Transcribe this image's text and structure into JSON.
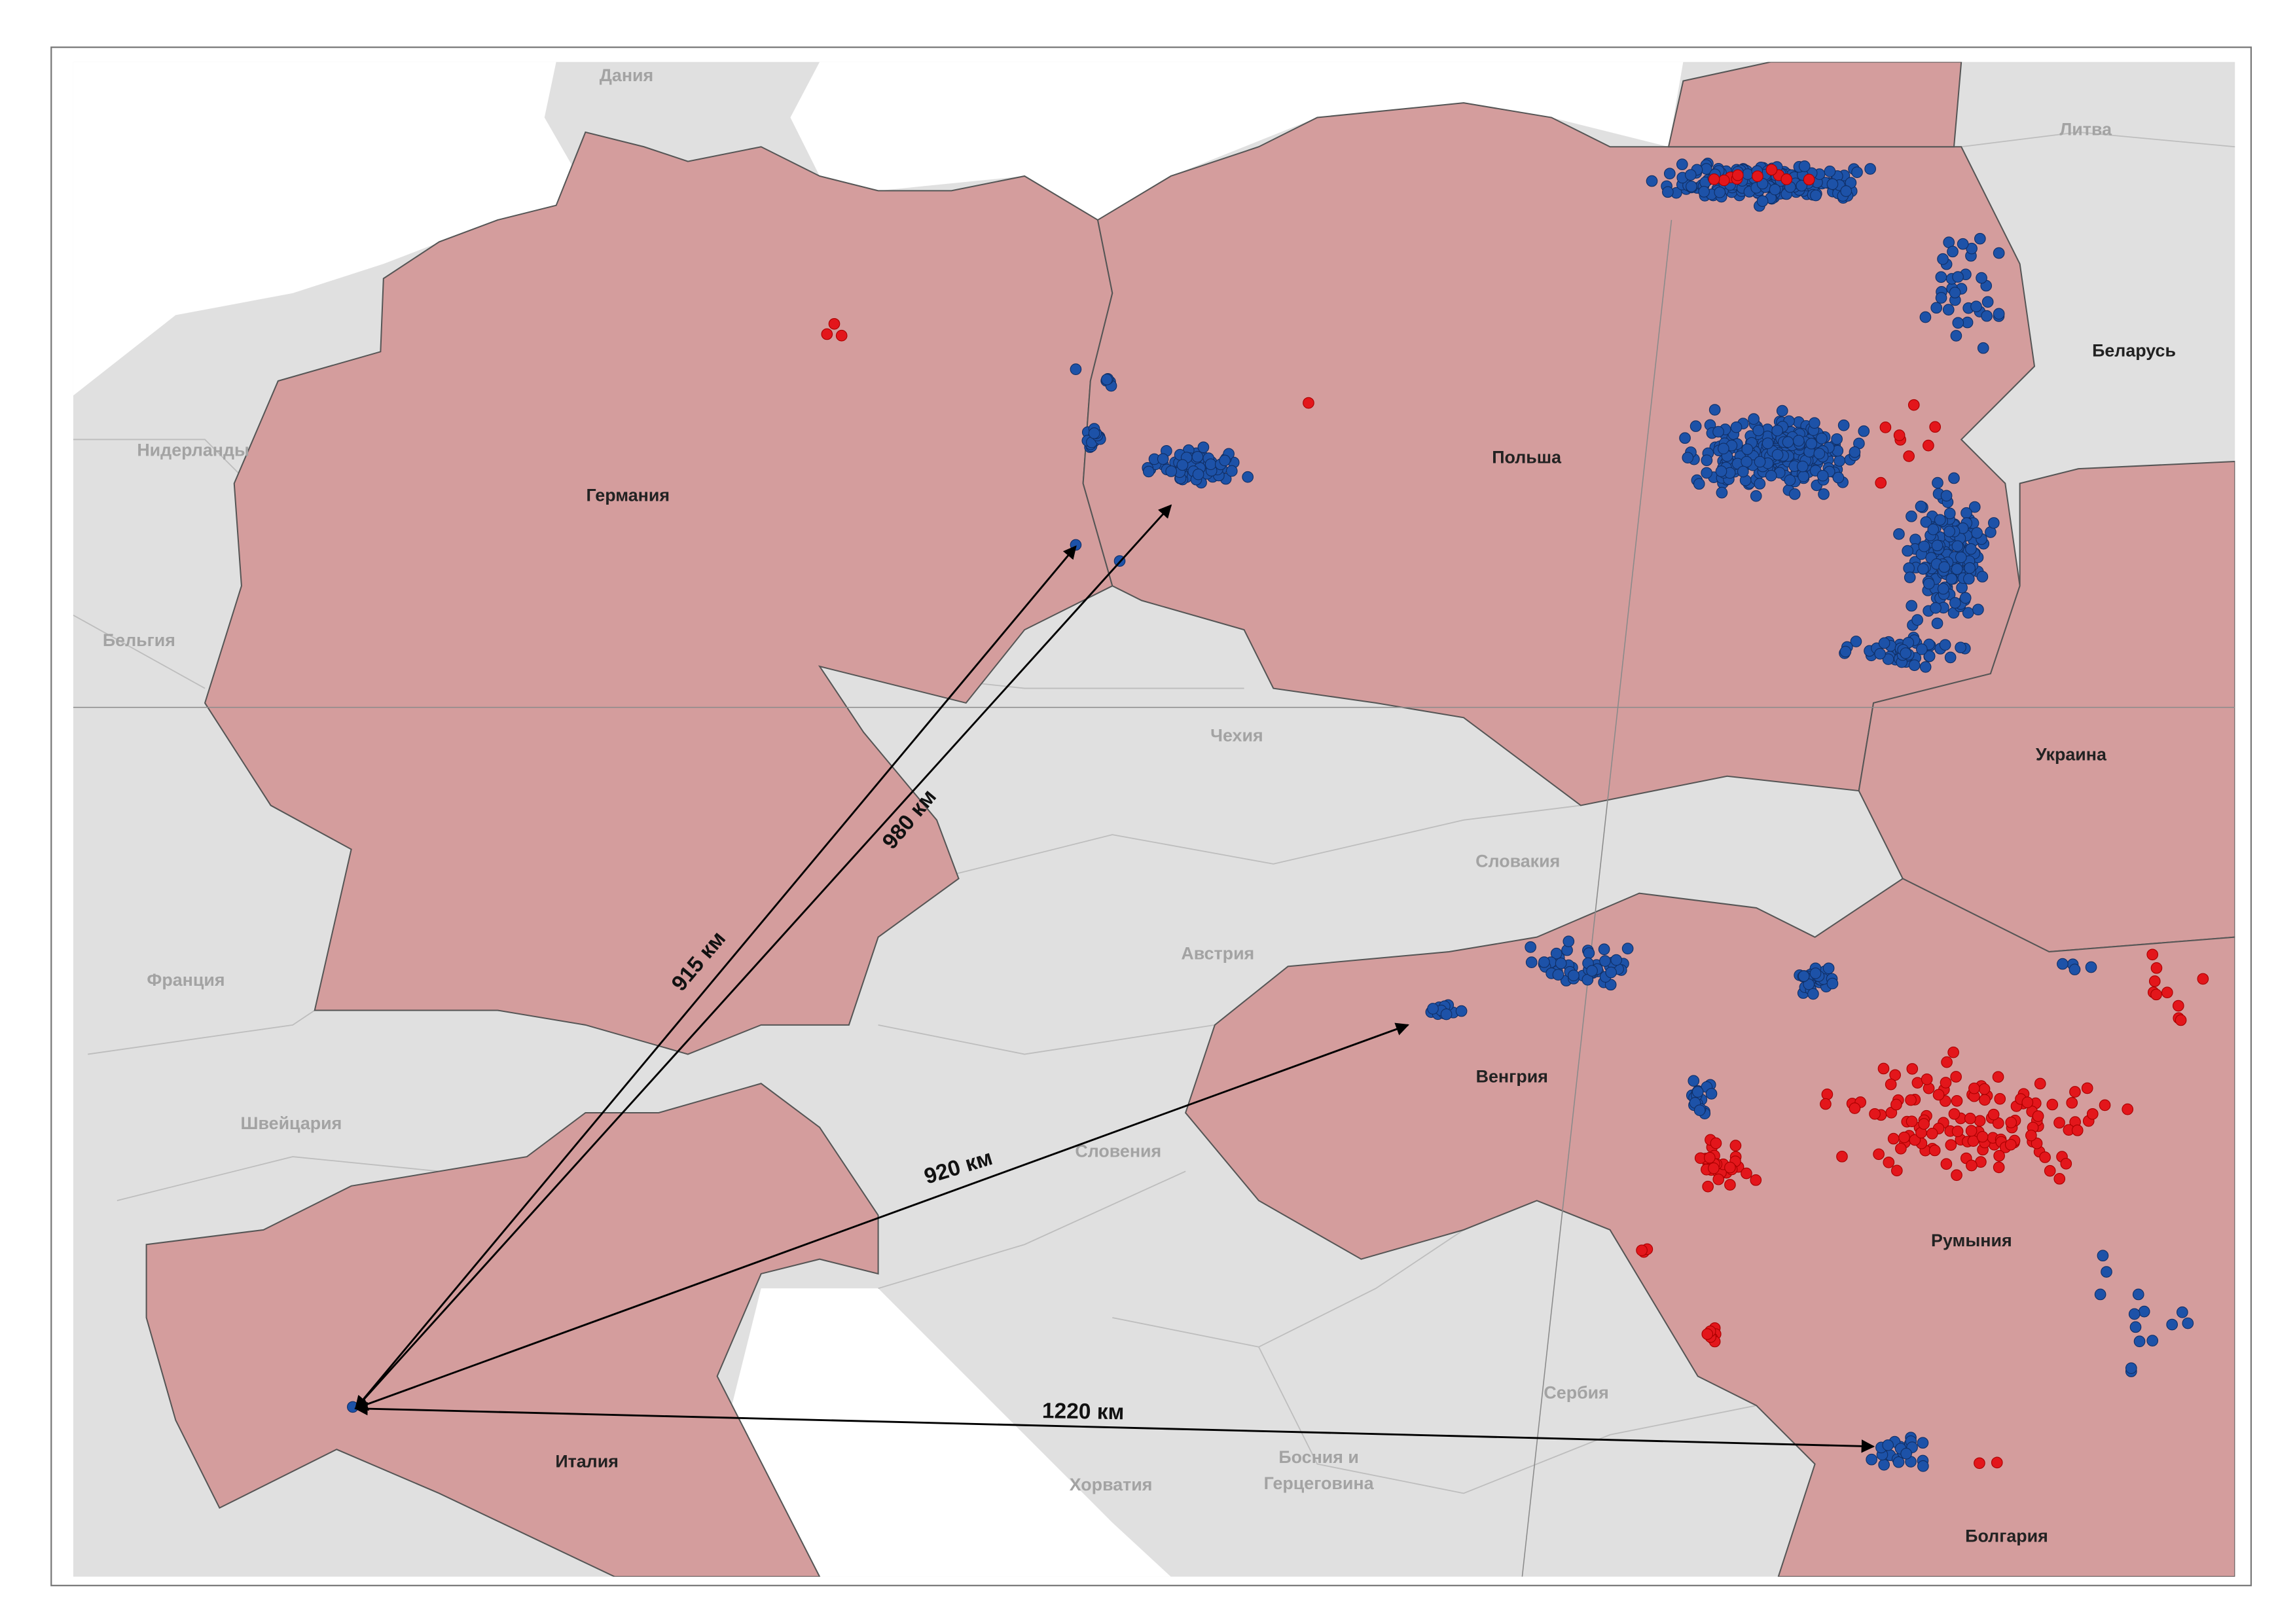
{
  "countries": [
    "Дания",
    "Литва",
    "Беларусь",
    "Нидерланды",
    "Германия",
    "Польша",
    "Бельгия",
    "Чехия",
    "Украина",
    "Словакия",
    "Франция",
    "Австрия",
    "Венгрия",
    "Швейцария",
    "Словения",
    "Румыния",
    "Сербия",
    [
      "Босния и",
      "Герцеговина"
    ],
    "Италия",
    "Хорватия",
    "Болгария"
  ],
  "distances": [
    "915 км",
    "980 км",
    "920 км",
    "1220 км"
  ]
}
